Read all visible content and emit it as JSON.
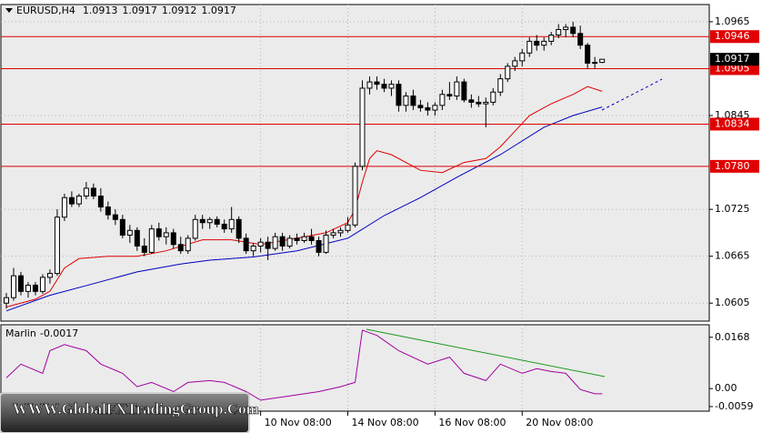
{
  "chart_data": {
    "type": "candlestick",
    "symbol": "EURUSD,H4",
    "open": [
      1.0605,
      1.0612,
      1.064,
      1.062,
      1.0628,
      1.062,
      1.0638,
      1.0643,
      1.0715,
      1.074,
      1.0732,
      1.0742,
      1.0752,
      1.0742,
      1.0728,
      1.0718,
      1.0712,
      1.0692,
      1.0698,
      1.0678,
      1.067,
      1.07,
      1.069,
      1.0695,
      1.068,
      1.0672,
      1.0688,
      1.0712,
      1.0708,
      1.0712,
      1.0706,
      1.07,
      1.0712,
      1.0688,
      1.0672,
      1.0678,
      1.0683,
      1.0675,
      1.069,
      1.0678,
      1.0688,
      1.0685,
      1.069,
      1.0685,
      1.067,
      1.0692,
      1.0695,
      1.0698,
      1.0705,
      1.078,
      1.088,
      1.0888,
      1.0885,
      1.088,
      1.0885,
      1.0858,
      1.087,
      1.0858,
      1.0855,
      1.0852,
      1.0858,
      1.0872,
      1.087,
      1.0888,
      1.0865,
      1.0862,
      1.086,
      1.0862,
      1.0875,
      1.0892,
      1.0908,
      1.0915,
      1.0925,
      1.094,
      1.0935,
      1.094,
      1.0948,
      1.0955,
      1.0958,
      1.095,
      1.0935,
      1.0912,
      1.0913
    ],
    "high": [
      1.0618,
      1.065,
      1.0645,
      1.0632,
      1.0632,
      1.0642,
      1.0648,
      1.0725,
      1.0745,
      1.0748,
      1.0745,
      1.076,
      1.0758,
      1.0752,
      1.0735,
      1.0725,
      1.0718,
      1.0705,
      1.0702,
      1.0688,
      1.0705,
      1.0708,
      1.0702,
      1.07,
      1.069,
      1.0692,
      1.0718,
      1.0718,
      1.0715,
      1.0716,
      1.0712,
      1.0728,
      1.0716,
      1.0694,
      1.0682,
      1.0688,
      1.069,
      1.0695,
      1.0695,
      1.0692,
      1.0694,
      1.0695,
      1.07,
      1.069,
      1.0698,
      1.07,
      1.0702,
      1.0715,
      1.0785,
      1.089,
      1.0895,
      1.0895,
      1.0892,
      1.089,
      1.089,
      1.0875,
      1.0878,
      1.0865,
      1.0862,
      1.0862,
      1.0878,
      1.0888,
      1.0895,
      1.0892,
      1.0872,
      1.087,
      1.0868,
      1.088,
      1.0898,
      1.0912,
      1.092,
      1.093,
      1.0945,
      1.0948,
      1.0945,
      1.0952,
      1.0962,
      1.0962,
      1.0965,
      1.096,
      1.0938,
      1.092,
      1.0917
    ],
    "low": [
      1.0598,
      1.0608,
      1.0615,
      1.0612,
      1.0615,
      1.0617,
      1.063,
      1.064,
      1.071,
      1.0728,
      1.0728,
      1.0738,
      1.0738,
      1.0722,
      1.0712,
      1.0705,
      1.0688,
      1.0682,
      1.0672,
      1.0665,
      1.0668,
      1.0685,
      1.068,
      1.0675,
      1.0668,
      1.0668,
      1.0685,
      1.07,
      1.07,
      1.0702,
      1.0695,
      1.0695,
      1.0682,
      1.0668,
      1.0665,
      1.067,
      1.066,
      1.0672,
      1.0672,
      1.0675,
      1.068,
      1.0682,
      1.068,
      1.0665,
      1.0668,
      1.0688,
      1.069,
      1.0695,
      1.0702,
      1.0775,
      1.0872,
      1.0878,
      1.0875,
      1.087,
      1.085,
      1.085,
      1.0852,
      1.085,
      1.0845,
      1.0845,
      1.0852,
      1.0865,
      1.0865,
      1.0862,
      1.0855,
      1.0856,
      1.083,
      1.0858,
      1.087,
      1.0888,
      1.0902,
      1.0908,
      1.092,
      1.0928,
      1.0928,
      1.0935,
      1.0944,
      1.0945,
      1.0945,
      1.093,
      1.0905,
      1.0905,
      1.0912
    ],
    "close": [
      1.0612,
      1.064,
      1.062,
      1.0628,
      1.062,
      1.0638,
      1.0643,
      1.0715,
      1.074,
      1.0732,
      1.0742,
      1.0752,
      1.0742,
      1.0728,
      1.0718,
      1.0712,
      1.0692,
      1.0698,
      1.0678,
      1.067,
      1.07,
      1.069,
      1.0695,
      1.068,
      1.0672,
      1.0688,
      1.0712,
      1.0708,
      1.0712,
      1.0706,
      1.07,
      1.0712,
      1.0688,
      1.0672,
      1.0678,
      1.0683,
      1.0675,
      1.069,
      1.0678,
      1.0688,
      1.0685,
      1.069,
      1.0685,
      1.067,
      1.0692,
      1.0695,
      1.0698,
      1.0705,
      1.078,
      1.088,
      1.0888,
      1.0885,
      1.088,
      1.0885,
      1.0858,
      1.087,
      1.0858,
      1.0855,
      1.0852,
      1.0858,
      1.0872,
      1.087,
      1.0888,
      1.0865,
      1.0862,
      1.086,
      1.0862,
      1.0875,
      1.0892,
      1.0908,
      1.0915,
      1.0925,
      1.094,
      1.0935,
      1.094,
      1.0948,
      1.0955,
      1.0958,
      1.095,
      1.0935,
      1.0912,
      1.0913,
      1.0917
    ],
    "up_color": "#ffffff",
    "down_color": "#000000",
    "xlim": [
      -0.75,
      96.75
    ],
    "xticks": [
      {
        "value": 35,
        "label": "10 Nov 08:00"
      },
      {
        "value": 47,
        "label": "14 Nov 08:00"
      },
      {
        "value": 59,
        "label": "16 Nov 08:00"
      },
      {
        "value": 71,
        "label": "20 Nov 08:00"
      }
    ],
    "ylim": [
      1.0582,
      1.0987
    ],
    "yticks": [
      1.0965,
      1.0845,
      1.0725,
      1.0665,
      1.0605
    ],
    "grid": true,
    "levels": [
      1.0946,
      1.0905,
      1.0834,
      {
        "value": 1.078,
        "label": "1.0780"
      }
    ],
    "level_color": "#e00000",
    "overlays": [
      {
        "color": "#e00000",
        "x": [
          0,
          4,
          6,
          8,
          10,
          14,
          18,
          22,
          27,
          31,
          35,
          40,
          44,
          47,
          48,
          49,
          50,
          51,
          53,
          57,
          60,
          63,
          66,
          68,
          70,
          72,
          75,
          78,
          80,
          82
        ],
        "values": [
          1.06,
          1.061,
          1.062,
          1.065,
          1.0662,
          1.0665,
          1.0665,
          1.0672,
          1.0686,
          1.0686,
          1.068,
          1.0688,
          1.0695,
          1.0708,
          1.0725,
          1.076,
          1.079,
          1.08,
          1.0795,
          1.0775,
          1.0772,
          1.0785,
          1.079,
          1.0805,
          1.0825,
          1.0845,
          1.086,
          1.0872,
          1.0882,
          1.0876
        ]
      },
      {
        "color": "#0000c0",
        "x": [
          0,
          6,
          12,
          18,
          24,
          28,
          34,
          40,
          47,
          52,
          57,
          62,
          68,
          74,
          78,
          82
        ],
        "values": [
          1.0595,
          1.0615,
          1.063,
          1.0645,
          1.0655,
          1.066,
          1.0664,
          1.0672,
          1.0688,
          1.0717,
          1.074,
          1.0766,
          1.0795,
          1.083,
          1.0845,
          1.0856
        ]
      }
    ],
    "indicator": {
      "type": "line",
      "title": "Marlin",
      "color": "#a000a0",
      "x": [
        0,
        2,
        5,
        6,
        8,
        11,
        13,
        16,
        18,
        20,
        23,
        25,
        28,
        30,
        33,
        35,
        39,
        43,
        46,
        48,
        49,
        51,
        54,
        58,
        61,
        63,
        66,
        68,
        71,
        73,
        75,
        77,
        79,
        81,
        82
      ],
      "values": [
        0.0035,
        0.008,
        0.005,
        0.0124,
        0.0144,
        0.0124,
        0.008,
        0.005,
        0.0006,
        0.002,
        -0.001,
        0.002,
        0.0026,
        0.002,
        -0.001,
        -0.0038,
        -0.0024,
        -0.001,
        0.0006,
        0.002,
        0.0191,
        0.0174,
        0.0124,
        0.008,
        0.0103,
        0.005,
        0.0026,
        0.008,
        0.005,
        0.0065,
        0.0056,
        0.005,
        -0.0003,
        -0.0017,
        -0.0017
      ],
      "ylim": [
        -0.0074,
        0.0209
      ],
      "yticks": [
        0.0168,
        {
          "value": 0,
          "label": "0.00"
        },
        -0.0059
      ]
    },
    "watermark": "WWW.GlobalFXTradingGroup.Com"
  }
}
